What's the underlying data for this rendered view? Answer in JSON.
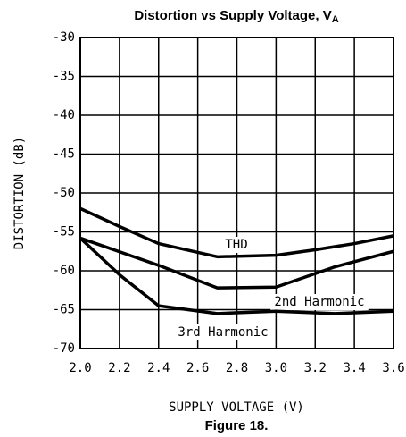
{
  "chart_data": {
    "type": "line",
    "title": "Distortion vs Supply Voltage, V",
    "title_subscript": "A",
    "caption": "Figure 18.",
    "xlabel": "SUPPLY VOLTAGE (V)",
    "ylabel": "DISTORTION (dB)",
    "xlim": [
      2.0,
      3.6
    ],
    "xticks": [
      {
        "value": 2,
        "label": "2.0"
      },
      2.2,
      2.4,
      2.6,
      2.8,
      {
        "value": 3,
        "label": "3.0"
      },
      3.2,
      3.4,
      3.6
    ],
    "ylim": [
      -70,
      -30
    ],
    "yticks": [
      -70,
      -65,
      -60,
      -55,
      -50,
      -45,
      -40,
      -35,
      -30
    ],
    "grid": true,
    "series": [
      {
        "name": "THD",
        "color": "#000000",
        "x": [
          2.0,
          2.2,
          2.4,
          2.7,
          3.0,
          3.2,
          3.4,
          3.6
        ],
        "values": [
          -52,
          -54.3,
          -56.5,
          -58.2,
          -58,
          -57.3,
          -56.5,
          -55.5
        ]
      },
      {
        "name": "2nd Harmonic",
        "color": "#000000",
        "x": [
          2.0,
          2.4,
          2.7,
          3.0,
          3.3,
          3.6
        ],
        "values": [
          -55.8,
          -59.3,
          -62.2,
          -62.1,
          -59.5,
          -57.5
        ]
      },
      {
        "name": "3rd Harmonic",
        "color": "#000000",
        "x": [
          2.0,
          2.2,
          2.4,
          2.7,
          3.0,
          3.3,
          3.6
        ],
        "values": [
          -55.8,
          -60.5,
          -64.5,
          -65.5,
          -65.2,
          -65.5,
          -65.2
        ]
      }
    ]
  }
}
